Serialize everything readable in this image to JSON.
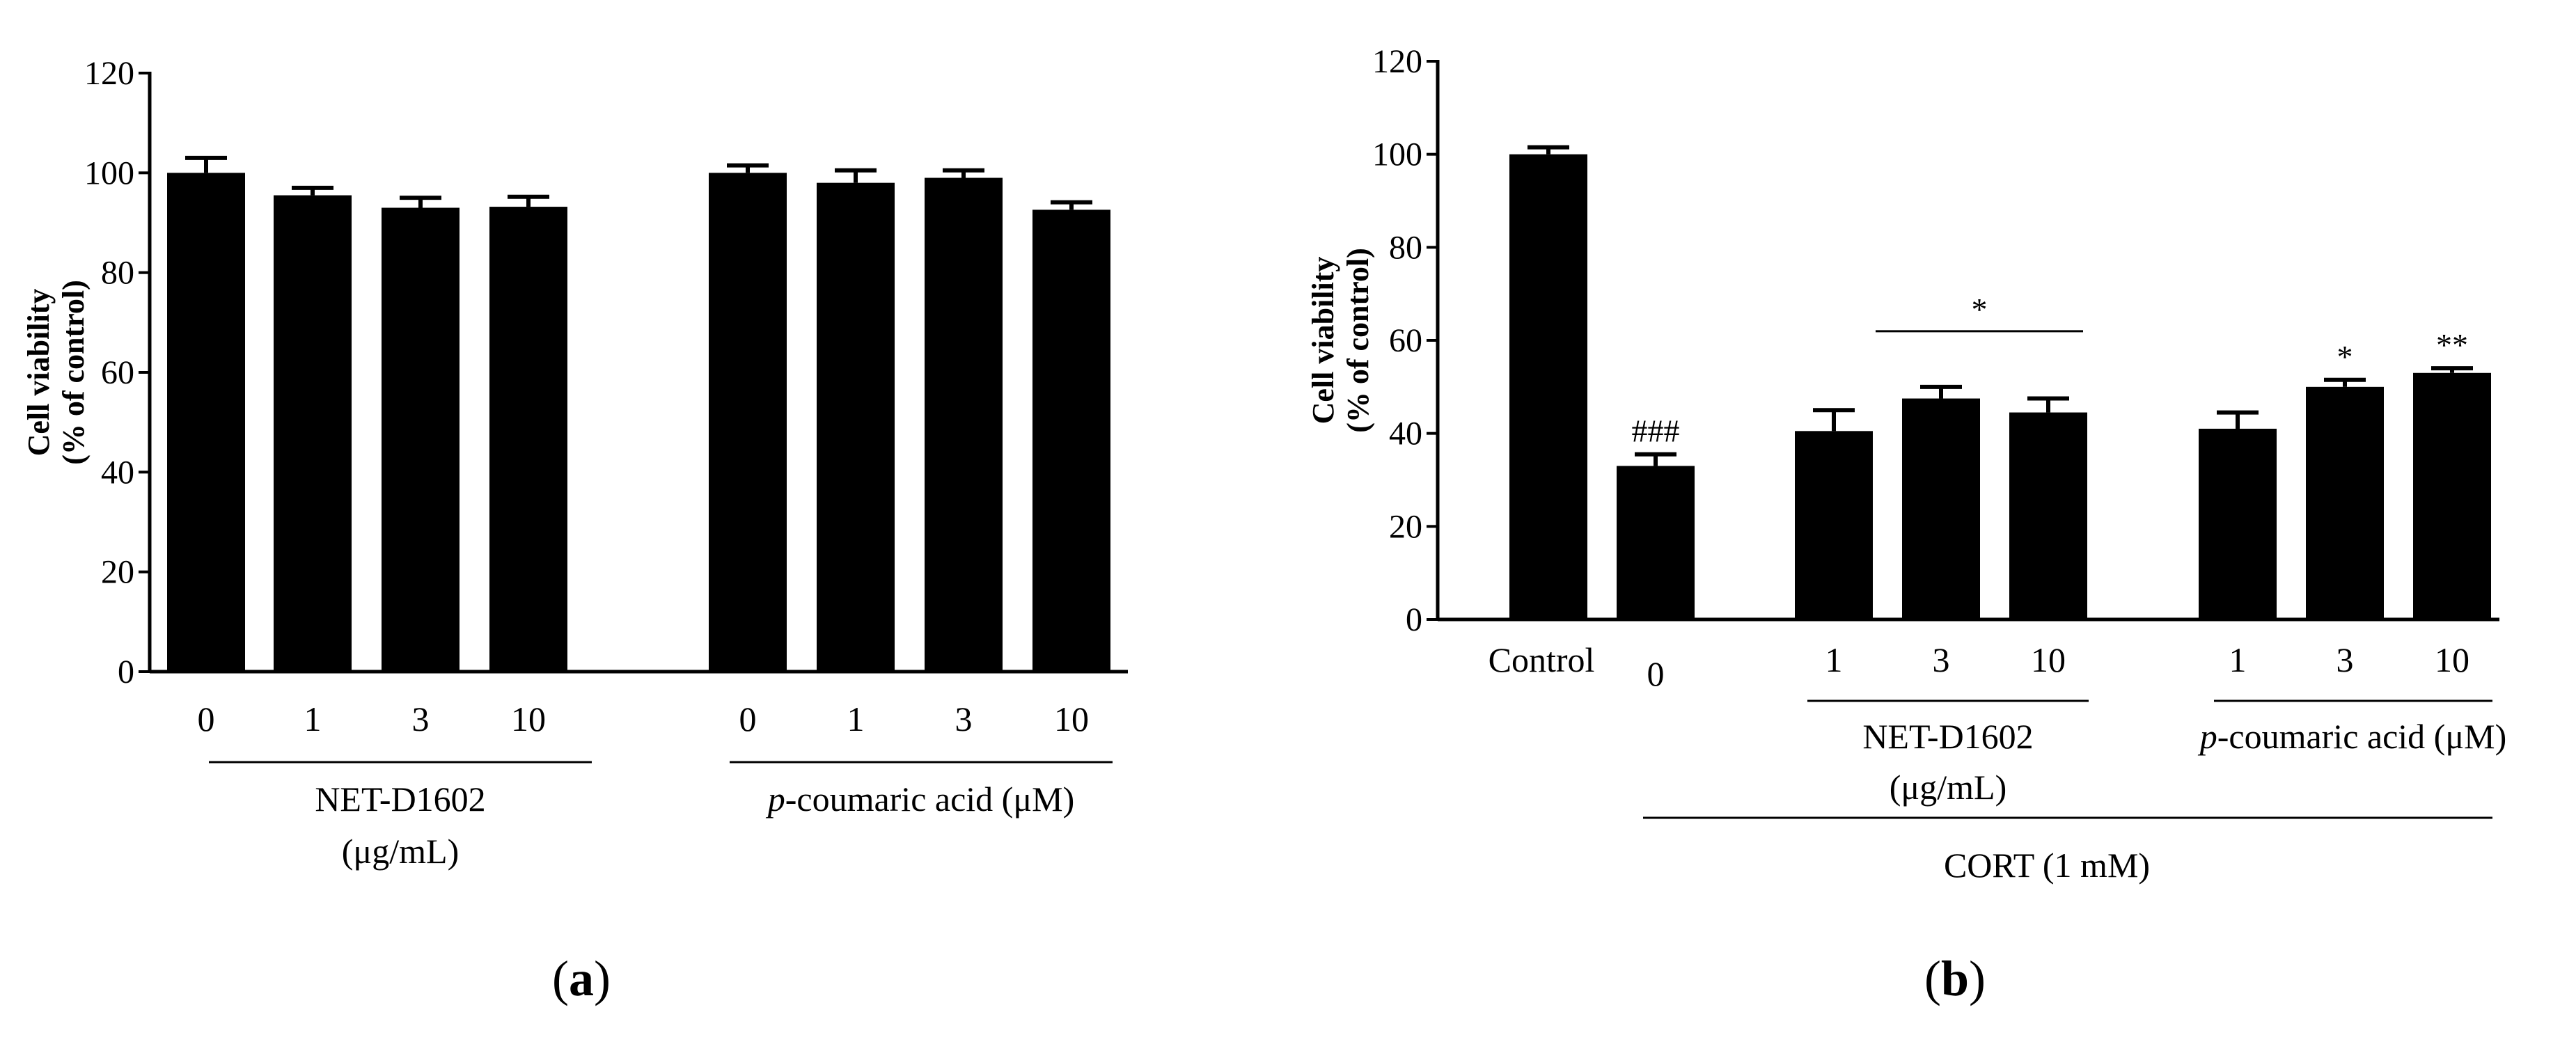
{
  "panels": [
    {
      "label": "(a)",
      "chart_data": {
        "type": "bar",
        "ylabel": [
          "Cell viability",
          "(% of control)"
        ],
        "ylim": [
          0,
          120
        ],
        "yticks": [
          0,
          20,
          40,
          60,
          80,
          100,
          120
        ],
        "groups": [
          {
            "name": [
              "NET-D1602",
              "(μg/mL)"
            ],
            "categories": [
              "0",
              "1",
              "3",
              "10"
            ],
            "values": [
              100,
              95.5,
              93,
              93.2
            ],
            "errors": [
              3,
              1.5,
              2,
              2
            ]
          },
          {
            "name": [
              "p-coumaric acid (μM)"
            ],
            "categories": [
              "0",
              "1",
              "3",
              "10"
            ],
            "values": [
              100,
              98,
              99,
              92.6
            ],
            "errors": [
              1.5,
              2.5,
              1.5,
              1.5
            ]
          }
        ],
        "annotations": []
      }
    },
    {
      "label": "(b)",
      "chart_data": {
        "type": "bar",
        "ylabel": [
          "Cell viability",
          "(% of control)"
        ],
        "ylim": [
          0,
          120
        ],
        "yticks": [
          0,
          20,
          40,
          60,
          80,
          100,
          120
        ],
        "groups": [
          {
            "name": [],
            "categories": [
              "Control",
              "0"
            ],
            "values": [
              100,
              33
            ],
            "errors": [
              1.5,
              2.5
            ],
            "marks": [
              "",
              "###"
            ]
          },
          {
            "name": [
              "NET-D1602",
              "(μg/mL)"
            ],
            "categories": [
              "1",
              "3",
              "10"
            ],
            "values": [
              40.5,
              47.5,
              44.5
            ],
            "errors": [
              4.5,
              2.5,
              3
            ],
            "marks": [
              "",
              "",
              ""
            ]
          },
          {
            "name": [
              "p-coumaric acid (μM)"
            ],
            "categories": [
              "1",
              "3",
              "10"
            ],
            "values": [
              41,
              50,
              53
            ],
            "errors": [
              3.5,
              1.5,
              1
            ],
            "marks": [
              "",
              "*",
              "**"
            ]
          }
        ],
        "bracket": {
          "group": 1,
          "label": "*"
        },
        "overall_label": "CORT (1 mM)"
      }
    }
  ]
}
